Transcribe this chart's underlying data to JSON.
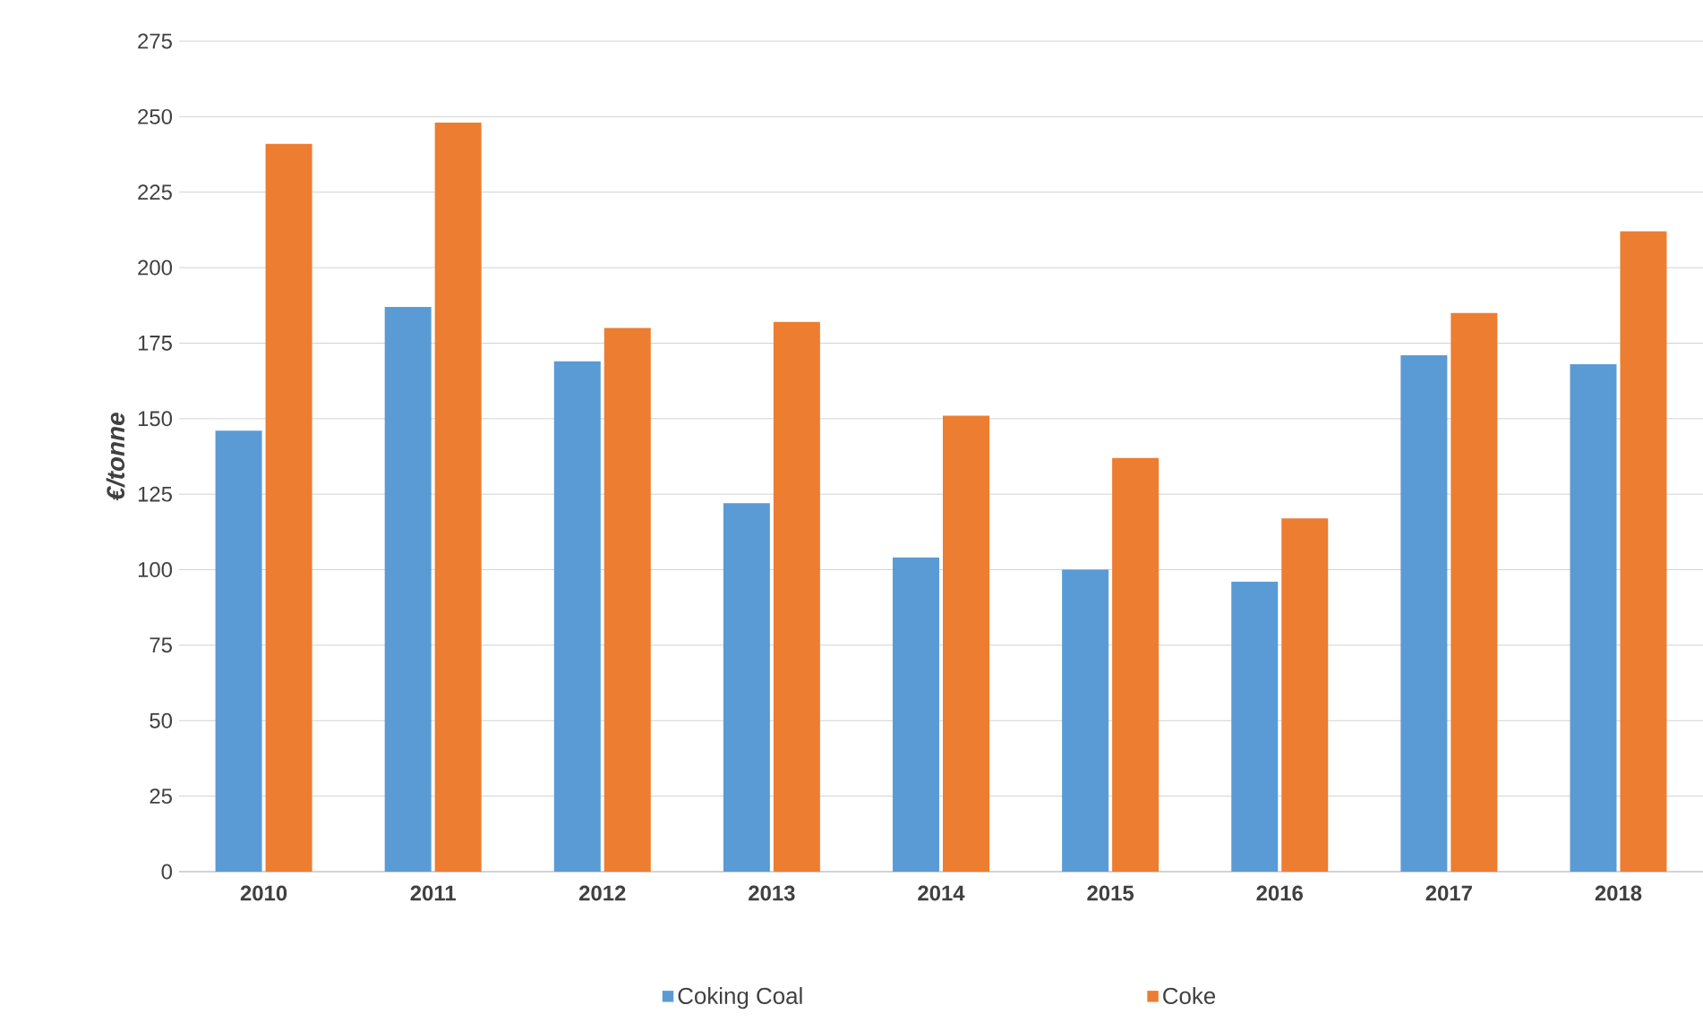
{
  "chart_data": {
    "type": "bar",
    "ylabel": "€/tonne",
    "categories": [
      "2010",
      "2011",
      "2012",
      "2013",
      "2014",
      "2015",
      "2016",
      "2017",
      "2018"
    ],
    "series": [
      {
        "name": "Coking Coal",
        "color": "#5b9bd5",
        "values": [
          146,
          187,
          169,
          122,
          104,
          100,
          96,
          171,
          168
        ]
      },
      {
        "name": "Coke",
        "color": "#ed7d31",
        "values": [
          241,
          248,
          180,
          182,
          151,
          137,
          117,
          185,
          212
        ]
      }
    ],
    "ylim": [
      0,
      275
    ],
    "yticks": [
      0,
      25,
      50,
      75,
      100,
      125,
      150,
      175,
      200,
      225,
      250,
      275
    ],
    "grid": "y",
    "legend": "bottom"
  }
}
